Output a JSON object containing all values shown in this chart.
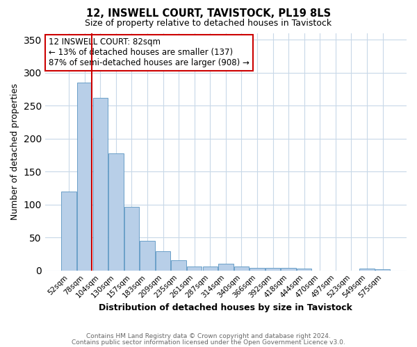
{
  "title1": "12, INSWELL COURT, TAVISTOCK, PL19 8LS",
  "title2": "Size of property relative to detached houses in Tavistock",
  "xlabel": "Distribution of detached houses by size in Tavistock",
  "ylabel": "Number of detached properties",
  "bar_labels": [
    "52sqm",
    "78sqm",
    "104sqm",
    "130sqm",
    "157sqm",
    "183sqm",
    "209sqm",
    "235sqm",
    "261sqm",
    "287sqm",
    "314sqm",
    "340sqm",
    "366sqm",
    "392sqm",
    "418sqm",
    "444sqm",
    "470sqm",
    "497sqm",
    "523sqm",
    "549sqm",
    "575sqm"
  ],
  "bar_heights": [
    120,
    285,
    262,
    178,
    96,
    45,
    29,
    16,
    6,
    6,
    10,
    6,
    4,
    4,
    4,
    3,
    0,
    0,
    0,
    3,
    2
  ],
  "bar_color": "#b8cfe8",
  "bar_edge_color": "#6a9fc8",
  "vline_color": "#cc0000",
  "annotation_title": "12 INSWELL COURT: 82sqm",
  "annotation_line1": "← 13% of detached houses are smaller (137)",
  "annotation_line2": "87% of semi-detached houses are larger (908) →",
  "annotation_box_color": "#ffffff",
  "annotation_box_edge_color": "#cc0000",
  "ylim": [
    0,
    360
  ],
  "yticks": [
    0,
    50,
    100,
    150,
    200,
    250,
    300,
    350
  ],
  "footer1": "Contains HM Land Registry data © Crown copyright and database right 2024.",
  "footer2": "Contains public sector information licensed under the Open Government Licence v3.0.",
  "background_color": "#ffffff",
  "grid_color": "#c8d8e8"
}
